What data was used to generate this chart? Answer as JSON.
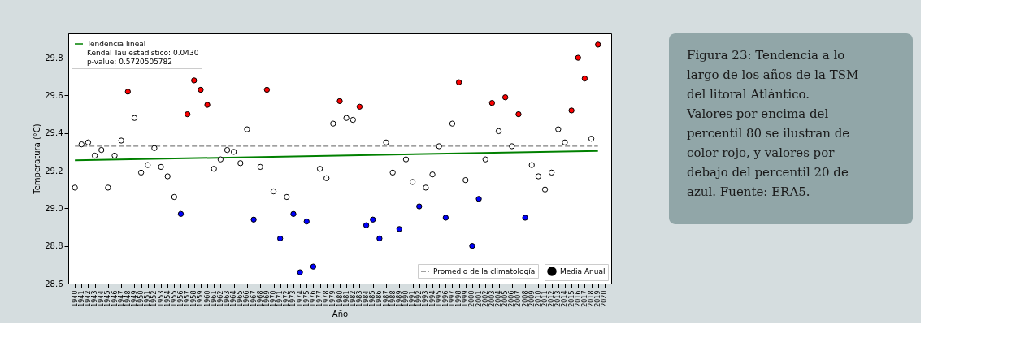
{
  "chart_data": {
    "type": "scatter",
    "xlabel": "Año",
    "ylabel": "Temperatura (°C)",
    "x": [
      1940,
      1941,
      1942,
      1943,
      1944,
      1945,
      1946,
      1947,
      1948,
      1949,
      1950,
      1951,
      1952,
      1953,
      1954,
      1955,
      1956,
      1957,
      1958,
      1959,
      1960,
      1961,
      1962,
      1963,
      1964,
      1965,
      1966,
      1967,
      1968,
      1969,
      1970,
      1971,
      1972,
      1973,
      1974,
      1975,
      1976,
      1977,
      1978,
      1979,
      1980,
      1981,
      1982,
      1983,
      1984,
      1985,
      1986,
      1987,
      1988,
      1989,
      1990,
      1991,
      1992,
      1993,
      1994,
      1995,
      1996,
      1997,
      1998,
      1999,
      2000,
      2001,
      2002,
      2003,
      2004,
      2005,
      2006,
      2007,
      2008,
      2009,
      2010,
      2011,
      2012,
      2013,
      2014,
      2015,
      2016,
      2017,
      2018,
      2019
    ],
    "series": [
      {
        "name": "Tendencia lineal\nKendal Tau estadistico: 0.0430\np-value: 0.5720505782",
        "type": "line",
        "marker": "none",
        "line_style": "solid",
        "color": "#008000",
        "x": [
          1940,
          2019
        ],
        "values": [
          29.255,
          29.305
        ]
      },
      {
        "name": "Media Anual",
        "marker": "circle",
        "values": [
          29.11,
          29.34,
          29.35,
          29.28,
          29.31,
          29.11,
          29.28,
          29.36,
          29.62,
          29.48,
          29.19,
          29.23,
          29.32,
          29.22,
          29.17,
          29.06,
          28.97,
          29.5,
          29.68,
          29.63,
          29.55,
          29.21,
          29.26,
          29.31,
          29.3,
          29.24,
          29.42,
          28.94,
          29.22,
          29.63,
          29.09,
          28.84,
          29.06,
          28.97,
          28.66,
          28.93,
          28.69,
          29.21,
          29.16,
          29.45,
          29.57,
          29.48,
          29.47,
          29.54,
          28.91,
          28.94,
          28.84,
          29.35,
          29.19,
          28.89,
          29.26,
          29.14,
          29.01,
          29.11,
          29.18,
          29.33,
          28.95,
          29.45,
          29.67,
          29.15,
          28.8,
          29.05,
          29.26,
          29.56,
          29.41,
          29.59,
          29.33,
          29.5,
          28.95,
          29.23,
          29.17,
          29.1,
          29.19,
          29.42,
          29.35,
          29.52,
          29.8,
          29.69,
          29.37,
          29.87
        ],
        "colors": [
          "#ffffff",
          "#ffffff",
          "#ffffff",
          "#ffffff",
          "#ffffff",
          "#ffffff",
          "#ffffff",
          "#ffffff",
          "#ff0000",
          "#ffffff",
          "#ffffff",
          "#ffffff",
          "#ffffff",
          "#ffffff",
          "#ffffff",
          "#ffffff",
          "#0000ff",
          "#ff0000",
          "#ff0000",
          "#ff0000",
          "#ff0000",
          "#ffffff",
          "#ffffff",
          "#ffffff",
          "#ffffff",
          "#ffffff",
          "#ffffff",
          "#0000ff",
          "#ffffff",
          "#ff0000",
          "#ffffff",
          "#0000ff",
          "#ffffff",
          "#0000ff",
          "#0000ff",
          "#0000ff",
          "#0000ff",
          "#ffffff",
          "#ffffff",
          "#ffffff",
          "#ff0000",
          "#ffffff",
          "#ffffff",
          "#ff0000",
          "#0000ff",
          "#0000ff",
          "#0000ff",
          "#ffffff",
          "#ffffff",
          "#0000ff",
          "#ffffff",
          "#ffffff",
          "#0000ff",
          "#ffffff",
          "#ffffff",
          "#ffffff",
          "#0000ff",
          "#ffffff",
          "#ff0000",
          "#ffffff",
          "#0000ff",
          "#0000ff",
          "#ffffff",
          "#ff0000",
          "#ffffff",
          "#ff0000",
          "#ffffff",
          "#ff0000",
          "#0000ff",
          "#ffffff",
          "#ffffff",
          "#ffffff",
          "#ffffff",
          "#ffffff",
          "#ffffff",
          "#ff0000",
          "#ff0000",
          "#ff0000",
          "#ffffff",
          "#ff0000"
        ]
      }
    ],
    "ref_lines": [
      {
        "axis": "y",
        "value": 29.33,
        "label": "Promedio de la climatología",
        "color": "#808080",
        "line_style": "dashed"
      }
    ],
    "xlim": [
      1939,
      2021
    ],
    "xticks": [
      1940,
      1941,
      1942,
      1943,
      1944,
      1945,
      1946,
      1947,
      1948,
      1949,
      1950,
      1951,
      1952,
      1953,
      1954,
      1955,
      1956,
      1957,
      1958,
      1959,
      1960,
      1961,
      1962,
      1963,
      1964,
      1965,
      1966,
      1967,
      1968,
      1969,
      1970,
      1971,
      1972,
      1973,
      1974,
      1975,
      1976,
      1977,
      1978,
      1979,
      1980,
      1981,
      1982,
      1983,
      1984,
      1985,
      1986,
      1987,
      1988,
      1989,
      1990,
      1991,
      1992,
      1993,
      1994,
      1995,
      1996,
      1997,
      1998,
      1999,
      2000,
      2001,
      2002,
      2003,
      2004,
      2005,
      2006,
      2007,
      2008,
      2009,
      2010,
      2011,
      2012,
      2013,
      2014,
      2015,
      2016,
      2017,
      2018,
      2019,
      2020
    ],
    "ylim": [
      28.6,
      29.93
    ],
    "yticks": [
      28.6,
      28.8,
      {
        "value": 29.0,
        "label": "29.0"
      },
      29.2,
      29.4,
      29.6,
      29.8
    ],
    "grid": false,
    "legend": [
      "top left",
      "bottom right"
    ],
    "annotations": [
      "Figura 23: Tendencia a lo largo de los años de la TSM del litoral Atlántico. Valores por encima del percentil 80 se ilustran de color rojo, y valores por debajo del percentil 20 de azul. Fuente: ERA5."
    ]
  }
}
